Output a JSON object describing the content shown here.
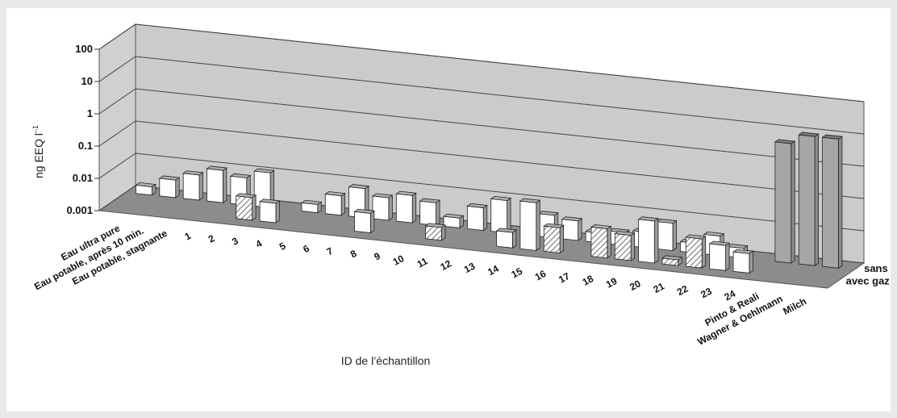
{
  "chart_data": {
    "type": "bar",
    "yscale": "log",
    "ylim": [
      0.001,
      100
    ],
    "yticks": [
      "0.001",
      "0.01",
      "0.1",
      "1",
      "10",
      "100"
    ],
    "ylabel": "ng EEQ l",
    "ylabel_sup": "–1",
    "xlabel": "ID de l’échantillon",
    "grid": true,
    "legend": "none",
    "categories": [
      "Eau ultra pure",
      "Eau potable, après 10 min.",
      "Eau potable, stagnante",
      "1",
      "2",
      "3",
      "4",
      "5",
      "6",
      "7",
      "8",
      "9",
      "10",
      "11",
      "12",
      "13",
      "14",
      "15",
      "16",
      "17",
      "18",
      "19",
      "20",
      "21",
      "22",
      "23",
      "24",
      "Pinto & Reali",
      "Wagner & Oehlmann",
      "Milch"
    ],
    "series": [
      {
        "name": "sans gaz",
        "values": [
          0.0018,
          0.0035,
          0.006,
          0.01,
          0.007,
          0.012,
          null,
          0.0018,
          0.004,
          0.008,
          0.005,
          0.007,
          0.005,
          0.002,
          0.005,
          0.01,
          null,
          0.005,
          0.004,
          0.002,
          0.0025,
          0.003,
          0.007,
          0.002,
          0.004,
          0.002,
          null,
          5,
          10,
          10
        ]
      },
      {
        "name": "avec gaz",
        "values": [
          null,
          null,
          null,
          null,
          null,
          0.005,
          0.004,
          null,
          null,
          null,
          0.004,
          null,
          null,
          0.0025,
          null,
          null,
          0.003,
          0.03,
          0.006,
          null,
          0.008,
          0.006,
          0.02,
          0.0015,
          0.008,
          0.006,
          0.004,
          null,
          null,
          null
        ]
      }
    ],
    "series_colors": {
      "sans gaz": "#ffffff",
      "avec gaz": "#ffffff"
    },
    "hatched": [
      {
        "series": "avec gaz",
        "category": "3"
      },
      {
        "series": "avec gaz",
        "category": "11"
      },
      {
        "series": "avec gaz",
        "category": "16"
      },
      {
        "series": "avec gaz",
        "category": "18"
      },
      {
        "series": "avec gaz",
        "category": "19"
      },
      {
        "series": "avec gaz",
        "category": "21"
      },
      {
        "series": "avec gaz",
        "category": "22"
      }
    ],
    "highlight_color": "#a6a6a6"
  }
}
